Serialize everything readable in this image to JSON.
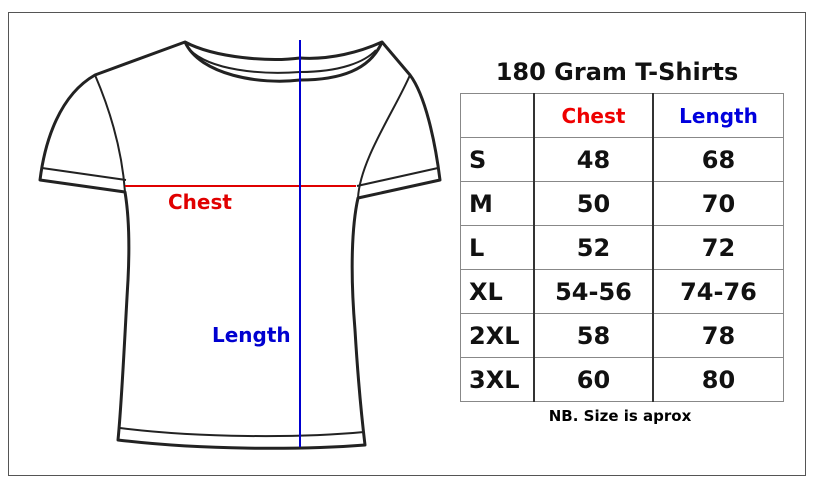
{
  "title": "180 Gram T-Shirts",
  "diagram": {
    "chest_label": "Chest",
    "length_label": "Length",
    "chest_color": "#e00000",
    "length_color": "#0000d0"
  },
  "table": {
    "headers": [
      "",
      "Chest",
      "Length"
    ],
    "rows": [
      {
        "size": "S",
        "chest": "48",
        "length": "68"
      },
      {
        "size": "M",
        "chest": "50",
        "length": "70"
      },
      {
        "size": "L",
        "chest": "52",
        "length": "72"
      },
      {
        "size": "XL",
        "chest": "54-56",
        "length": "74-76"
      },
      {
        "size": "2XL",
        "chest": "58",
        "length": "78"
      },
      {
        "size": "3XL",
        "chest": "60",
        "length": "80"
      }
    ]
  },
  "note": "NB. Size is aprox"
}
